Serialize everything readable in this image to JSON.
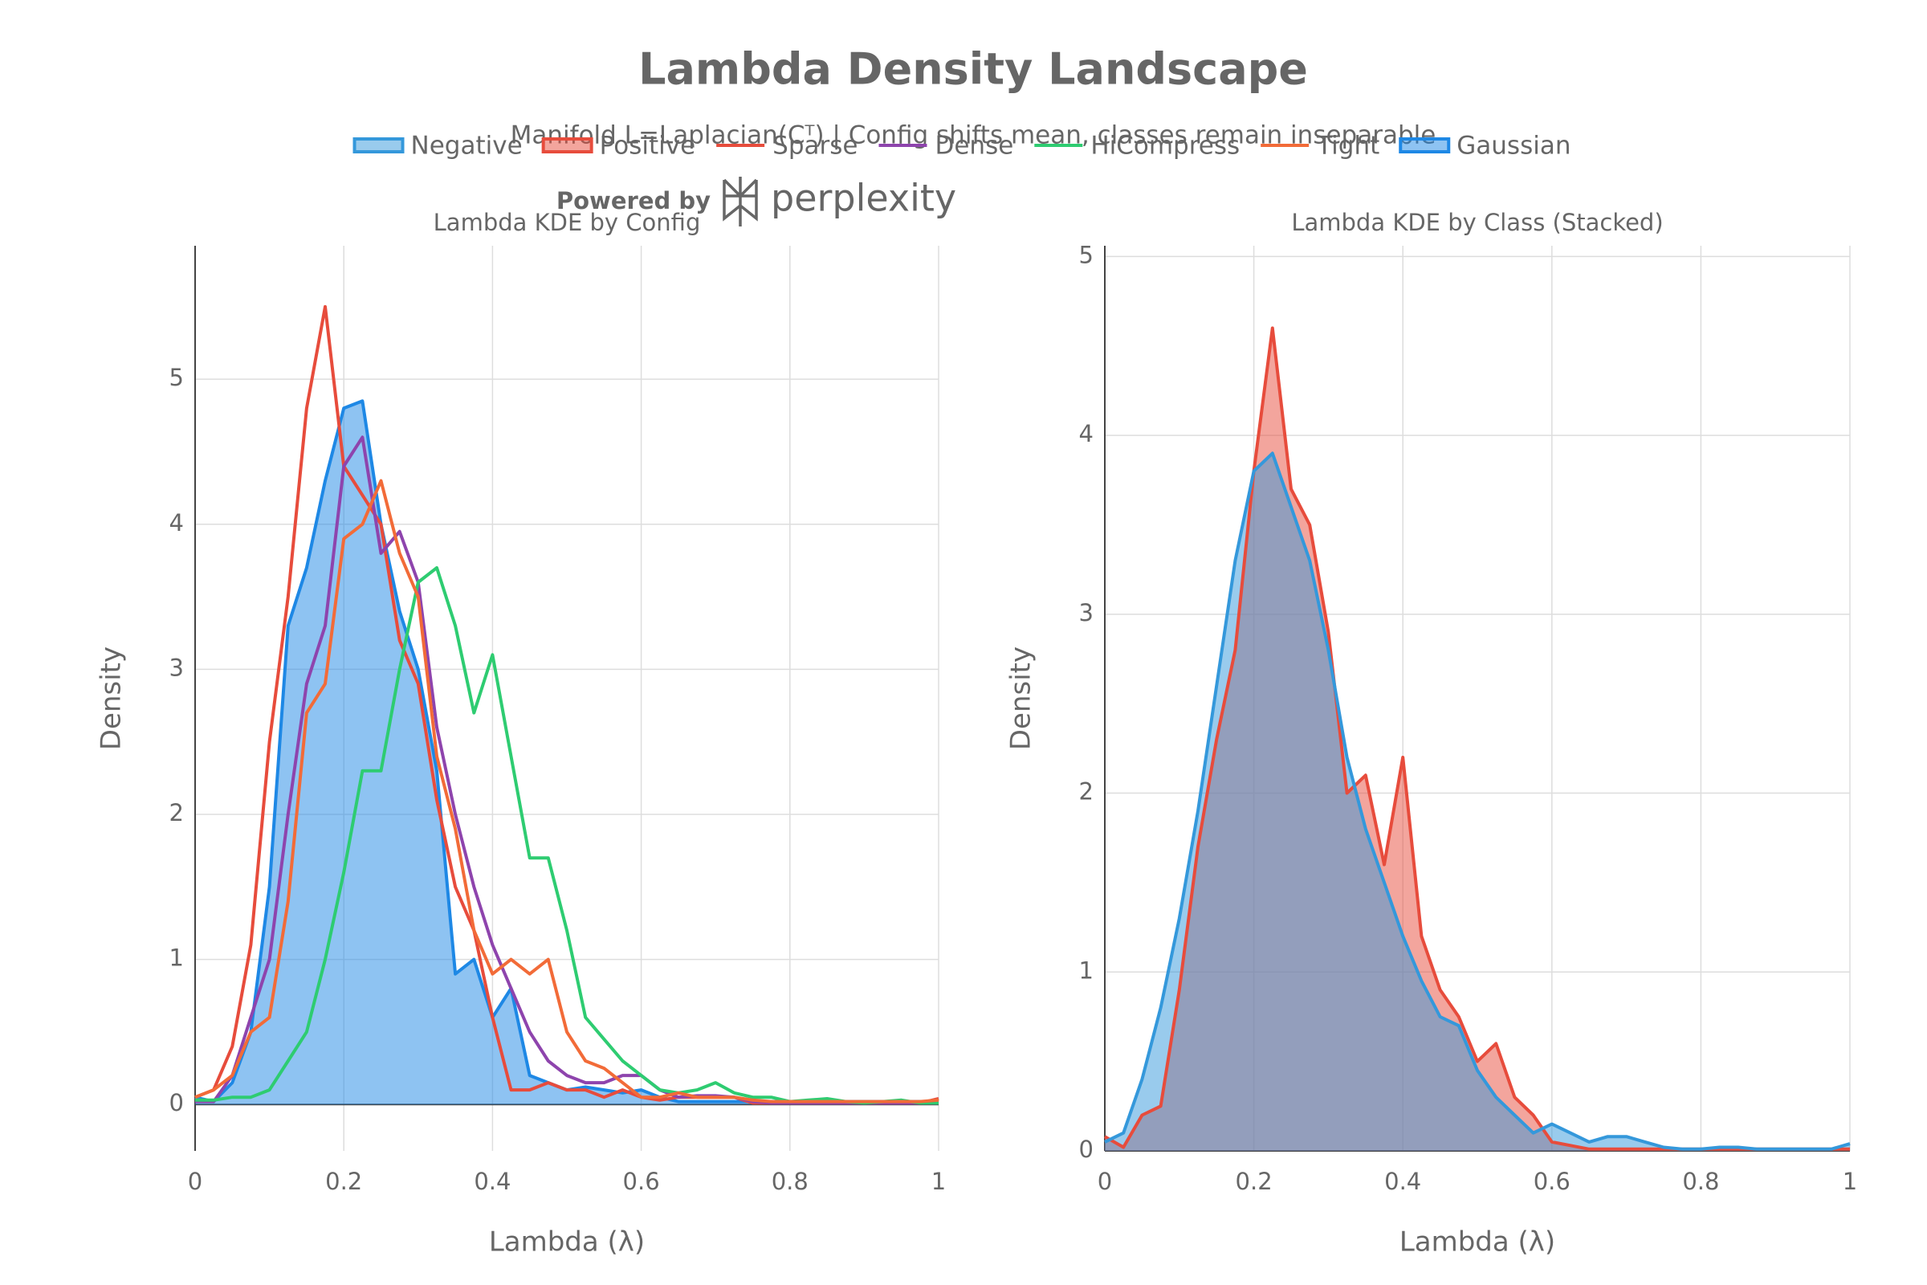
{
  "title": "Lambda Density Landscape",
  "subtitle": "Manifold L=Laplacian(Cᵀ) | Config shifts mean, classes remain inseparable",
  "branding": {
    "prefix": "Powered by",
    "name": "perplexity"
  },
  "chart_data": [
    {
      "type": "line",
      "title": "Lambda KDE by Config",
      "x_label": "Lambda (λ)",
      "y_label": "Density",
      "x": [
        0,
        0.025,
        0.05,
        0.075,
        0.1,
        0.125,
        0.15,
        0.175,
        0.2,
        0.225,
        0.25,
        0.275,
        0.3,
        0.325,
        0.35,
        0.375,
        0.4,
        0.425,
        0.45,
        0.475,
        0.5,
        0.525,
        0.55,
        0.575,
        0.6,
        0.625,
        0.65,
        0.675,
        0.7,
        0.725,
        0.75,
        0.775,
        0.8,
        0.825,
        0.85,
        0.875,
        0.9,
        0.925,
        0.95,
        0.975,
        1
      ],
      "xlim": [
        0,
        1
      ],
      "ylim": [
        -0.32,
        5.92
      ],
      "xticks": [
        0,
        0.2,
        0.4,
        0.6,
        0.8,
        1
      ],
      "yticks": [
        0,
        1,
        2,
        3,
        4,
        5
      ],
      "grid": true,
      "series": [
        {
          "name": "Sparse",
          "color": "#e74c3c",
          "fill": false,
          "values": [
            0.05,
            0.1,
            0.4,
            1.1,
            2.5,
            3.5,
            4.8,
            5.5,
            4.4,
            4.2,
            4.0,
            3.2,
            2.9,
            2.1,
            1.5,
            1.2,
            0.6,
            0.1,
            0.1,
            0.15,
            0.1,
            0.1,
            0.05,
            0.1,
            0.05,
            0.03,
            0.05,
            0.05,
            0.05,
            0.05,
            0.01,
            0.01,
            0.01,
            0.01,
            0.01,
            0.01,
            0.01,
            0.01,
            0.01,
            0.01,
            0.04
          ]
        },
        {
          "name": "Dense",
          "color": "#8e44ad",
          "fill": false,
          "values": [
            0.02,
            0.02,
            0.2,
            0.6,
            1.0,
            2.0,
            2.9,
            3.3,
            4.4,
            4.6,
            3.8,
            3.95,
            3.6,
            2.6,
            2.0,
            1.5,
            1.1,
            0.8,
            0.5,
            0.3,
            0.2,
            0.15,
            0.15,
            0.2,
            0.2,
            0.1,
            0.05,
            0.06,
            0.06,
            0.05,
            0.02,
            0.01,
            0.01,
            0.01,
            0.01,
            0.01,
            0.01,
            0.01,
            0.01,
            0.01,
            0.01
          ]
        },
        {
          "name": "HiCompress",
          "color": "#2ecc71",
          "fill": false,
          "values": [
            0.03,
            0.03,
            0.05,
            0.05,
            0.1,
            0.3,
            0.5,
            1.0,
            1.6,
            2.3,
            2.3,
            3.0,
            3.6,
            3.7,
            3.3,
            2.7,
            3.1,
            2.4,
            1.7,
            1.7,
            1.2,
            0.6,
            0.45,
            0.3,
            0.2,
            0.1,
            0.08,
            0.1,
            0.15,
            0.08,
            0.05,
            0.05,
            0.02,
            0.03,
            0.04,
            0.02,
            0.01,
            0.02,
            0.03,
            0.01,
            0.01
          ]
        },
        {
          "name": "Tight",
          "color": "#f26b38",
          "fill": false,
          "values": [
            0.05,
            0.1,
            0.2,
            0.5,
            0.6,
            1.4,
            2.7,
            2.9,
            3.9,
            4.0,
            4.3,
            3.8,
            3.5,
            2.4,
            1.9,
            1.2,
            0.9,
            1.0,
            0.9,
            1.0,
            0.5,
            0.3,
            0.25,
            0.15,
            0.05,
            0.05,
            0.08,
            0.05,
            0.05,
            0.05,
            0.03,
            0.02,
            0.02,
            0.02,
            0.02,
            0.02,
            0.02,
            0.02,
            0.02,
            0.02,
            0.03
          ]
        },
        {
          "name": "Gaussian",
          "color": "#1e88e5",
          "fill": true,
          "values": [
            0.05,
            0.02,
            0.15,
            0.5,
            1.5,
            3.3,
            3.7,
            4.3,
            4.8,
            4.85,
            4.0,
            3.4,
            3.0,
            2.3,
            0.9,
            1.0,
            0.6,
            0.8,
            0.2,
            0.15,
            0.1,
            0.12,
            0.1,
            0.08,
            0.1,
            0.05,
            0.02,
            0.02,
            0.02,
            0.02,
            0.02,
            0.02,
            0.02,
            0.02,
            0.02,
            0.02,
            0.02,
            0.02,
            0.02,
            0.02,
            0.02
          ]
        }
      ]
    },
    {
      "type": "area",
      "title": "Lambda KDE by Class (Stacked)",
      "x_label": "Lambda (λ)",
      "y_label": "Density",
      "x": [
        0,
        0.025,
        0.05,
        0.075,
        0.1,
        0.125,
        0.15,
        0.175,
        0.2,
        0.225,
        0.25,
        0.275,
        0.3,
        0.325,
        0.35,
        0.375,
        0.4,
        0.425,
        0.45,
        0.475,
        0.5,
        0.525,
        0.55,
        0.575,
        0.6,
        0.625,
        0.65,
        0.675,
        0.7,
        0.725,
        0.75,
        0.775,
        0.8,
        0.825,
        0.85,
        0.875,
        0.9,
        0.925,
        0.95,
        0.975,
        1
      ],
      "xlim": [
        0,
        1
      ],
      "ylim": [
        0,
        5.06
      ],
      "xticks": [
        0,
        0.2,
        0.4,
        0.6,
        0.8,
        1
      ],
      "yticks": [
        0,
        1,
        2,
        3,
        4,
        5
      ],
      "grid": true,
      "series": [
        {
          "name": "Negative",
          "color": "#3498db",
          "fill": true,
          "values": [
            0.05,
            0.1,
            0.4,
            0.8,
            1.3,
            1.9,
            2.6,
            3.3,
            3.8,
            3.9,
            3.6,
            3.3,
            2.8,
            2.2,
            1.8,
            1.5,
            1.2,
            0.95,
            0.75,
            0.7,
            0.45,
            0.3,
            0.2,
            0.1,
            0.15,
            0.1,
            0.05,
            0.08,
            0.08,
            0.05,
            0.02,
            0.01,
            0.01,
            0.02,
            0.02,
            0.01,
            0.01,
            0.01,
            0.01,
            0.01,
            0.04
          ]
        },
        {
          "name": "Positive",
          "color": "#e74c3c",
          "fill": true,
          "values": [
            0.08,
            0.02,
            0.2,
            0.25,
            0.9,
            1.7,
            2.3,
            2.8,
            3.8,
            4.6,
            3.7,
            3.5,
            2.9,
            2.0,
            2.1,
            1.6,
            2.2,
            1.2,
            0.9,
            0.75,
            0.5,
            0.6,
            0.3,
            0.2,
            0.05,
            0.03,
            0.01,
            0.01,
            0.01,
            0.01,
            0.01,
            0.01,
            0.01,
            0.01,
            0.01,
            0.01,
            0.01,
            0.01,
            0.01,
            0.01,
            0.01
          ]
        }
      ]
    }
  ]
}
